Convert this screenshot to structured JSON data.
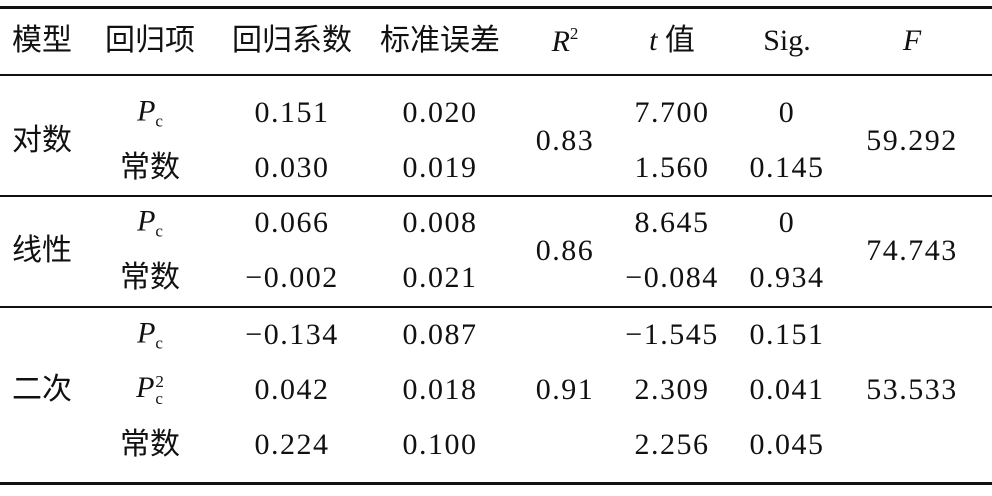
{
  "table": {
    "header": [
      "模型",
      "回归项",
      "回归系数",
      "标准误差",
      {
        "italic": "R",
        "sup": "2"
      },
      {
        "italic": "t",
        "text": "值"
      },
      "Sig.",
      {
        "italic": "F"
      }
    ],
    "groups": [
      {
        "model": "对数",
        "r2": "0.83",
        "f": "59.292",
        "rows": [
          {
            "term": {
              "base": "P",
              "sub": "c"
            },
            "coef": "0.151",
            "se": "0.020",
            "t": "7.700",
            "sig": "0"
          },
          {
            "term": "常数",
            "coef": "0.030",
            "se": "0.019",
            "t": "1.560",
            "sig": "0.145"
          }
        ]
      },
      {
        "model": "线性",
        "r2": "0.86",
        "f": "74.743",
        "rows": [
          {
            "term": {
              "base": "P",
              "sub": "c"
            },
            "coef": "0.066",
            "se": "0.008",
            "t": "8.645",
            "sig": "0"
          },
          {
            "term": "常数",
            "coef": "−0.002",
            "se": "0.021",
            "t": "−0.084",
            "sig": "0.934"
          }
        ]
      },
      {
        "model": "二次",
        "r2": "0.91",
        "f": "53.533",
        "rows": [
          {
            "term": {
              "base": "P",
              "sub": "c"
            },
            "coef": "−0.134",
            "se": "0.087",
            "t": "−1.545",
            "sig": "0.151"
          },
          {
            "term": {
              "base": "P",
              "sub": "c",
              "sup": "2"
            },
            "coef": "0.042",
            "se": "0.018",
            "t": "2.309",
            "sig": "0.041"
          },
          {
            "term": "常数",
            "coef": "0.224",
            "se": "0.100",
            "t": "2.256",
            "sig": "0.045"
          }
        ]
      }
    ]
  }
}
